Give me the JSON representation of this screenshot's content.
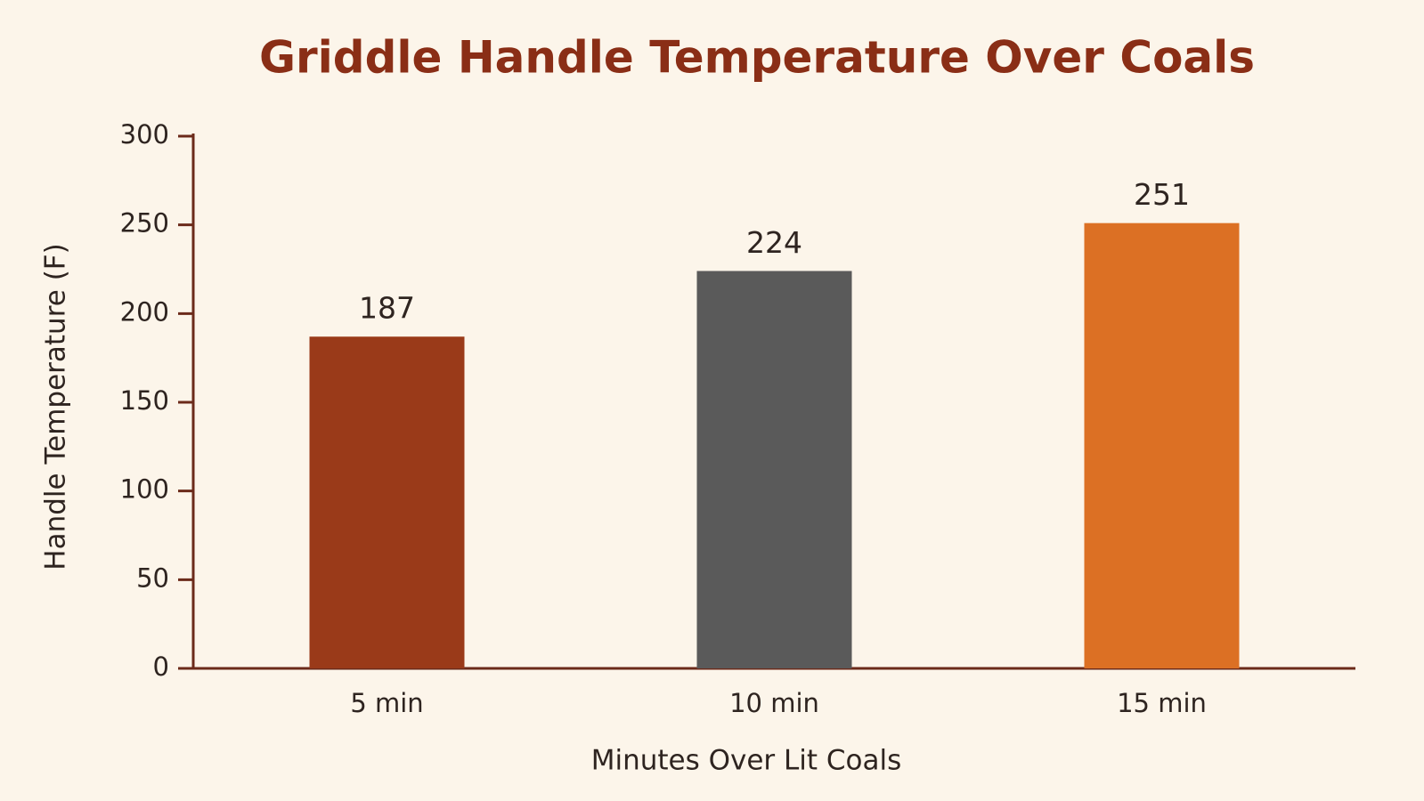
{
  "chart_data": {
    "type": "bar",
    "title": "Griddle Handle Temperature Over Coals",
    "x_label": "Minutes Over Lit Coals",
    "y_label": "Handle Temperature (F)",
    "categories": [
      "5 min",
      "10 min",
      "15 min"
    ],
    "values": [
      187,
      224,
      251
    ],
    "colors": [
      "#9a3a19",
      "#5a5a5a",
      "#dc7024"
    ],
    "ylim": [
      0,
      300
    ],
    "yticks": [
      0,
      50,
      100,
      150,
      200,
      250,
      300
    ],
    "grid": false
  }
}
